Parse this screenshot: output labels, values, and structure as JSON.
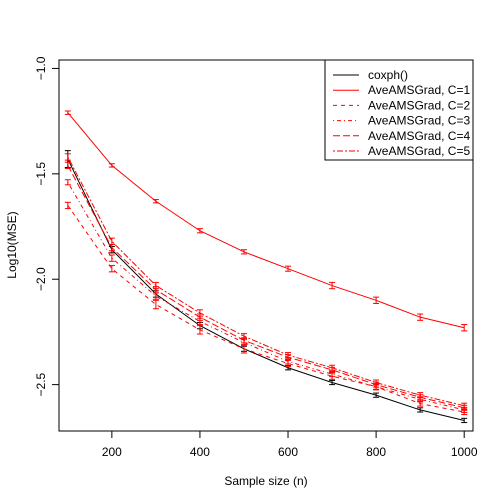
{
  "chart_data": {
    "type": "line",
    "title": "",
    "xlabel": "Sample size (n)",
    "ylabel": "Log10(MSE)",
    "xlim": [
      80,
      1020
    ],
    "ylim": [
      -2.72,
      -0.96
    ],
    "x_ticks": [
      200,
      400,
      600,
      800,
      1000
    ],
    "x_tick_labels": [
      "200",
      "400",
      "600",
      "800",
      "1000"
    ],
    "y_ticks": [
      -2.5,
      -2.0,
      -1.5,
      -1.0
    ],
    "y_tick_labels": [
      "−2.5",
      "−2.0",
      "−1.5",
      "−1.0"
    ],
    "grid": false,
    "legend_position": "top-right",
    "x": [
      100,
      200,
      300,
      400,
      500,
      600,
      700,
      800,
      900,
      1000
    ],
    "series": [
      {
        "name": "coxph()",
        "color": "#000000",
        "dash": "solid",
        "values": [
          -1.43,
          -1.86,
          -2.07,
          -2.22,
          -2.33,
          -2.42,
          -2.49,
          -2.55,
          -2.62,
          -2.67
        ],
        "errors": [
          0.04,
          0.015,
          0.015,
          0.015,
          0.012,
          0.01,
          0.01,
          0.01,
          0.01,
          0.01
        ]
      },
      {
        "name": "AveAMSGrad, C=1",
        "color": "#ff0000",
        "dash": "solid",
        "values": [
          -1.21,
          -1.46,
          -1.63,
          -1.77,
          -1.87,
          -1.95,
          -2.03,
          -2.1,
          -2.18,
          -2.23
        ],
        "errors": [
          0.008,
          0.008,
          0.008,
          0.01,
          0.01,
          0.012,
          0.015,
          0.015,
          0.015,
          0.015
        ]
      },
      {
        "name": "AveAMSGrad, C=2",
        "color": "#ff0000",
        "dash": "dashed",
        "values": [
          -1.65,
          -1.95,
          -2.12,
          -2.24,
          -2.33,
          -2.4,
          -2.46,
          -2.51,
          -2.59,
          -2.63
        ],
        "errors": [
          0.015,
          0.015,
          0.02,
          0.02,
          0.02,
          0.015,
          0.015,
          0.015,
          0.012,
          0.012
        ]
      },
      {
        "name": "AveAMSGrad, C=3",
        "color": "#ff0000",
        "dash": "dotdash",
        "values": [
          -1.54,
          -1.9,
          -2.08,
          -2.2,
          -2.3,
          -2.39,
          -2.45,
          -2.51,
          -2.57,
          -2.62
        ],
        "errors": [
          0.012,
          0.015,
          0.015,
          0.015,
          0.015,
          0.012,
          0.012,
          0.012,
          0.012,
          0.012
        ]
      },
      {
        "name": "AveAMSGrad, C=4",
        "color": "#ff0000",
        "dash": "longdash",
        "values": [
          -1.46,
          -1.85,
          -2.05,
          -2.18,
          -2.29,
          -2.37,
          -2.43,
          -2.5,
          -2.56,
          -2.61
        ],
        "errors": [
          0.015,
          0.015,
          0.015,
          0.015,
          0.012,
          0.012,
          0.012,
          0.012,
          0.012,
          0.012
        ]
      },
      {
        "name": "AveAMSGrad, C=5",
        "color": "#ff0000",
        "dash": "twodash",
        "values": [
          -1.42,
          -1.82,
          -2.03,
          -2.16,
          -2.27,
          -2.36,
          -2.42,
          -2.49,
          -2.55,
          -2.6
        ],
        "errors": [
          0.015,
          0.015,
          0.015,
          0.015,
          0.012,
          0.012,
          0.012,
          0.012,
          0.012,
          0.012
        ]
      }
    ]
  }
}
